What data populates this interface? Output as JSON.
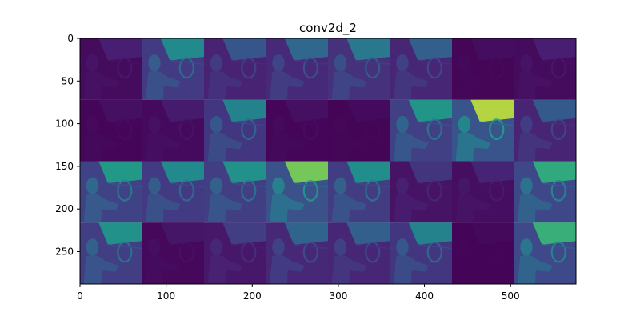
{
  "chart_data": {
    "type": "heatmap",
    "title": "conv2d_2",
    "xlabel": "",
    "ylabel": "",
    "xlim": [
      0,
      576
    ],
    "ylim": [
      288,
      0
    ],
    "x_ticks": [
      0,
      100,
      200,
      300,
      400,
      500
    ],
    "y_ticks": [
      0,
      50,
      100,
      150,
      200,
      250
    ],
    "grid": false,
    "colormap": "viridis",
    "tile_rows": 4,
    "tile_cols": 8,
    "tile_size": 72,
    "tile_intensity": [
      [
        0.12,
        0.62,
        0.36,
        0.44,
        0.52,
        0.4,
        0.05,
        0.12
      ],
      [
        0.06,
        0.1,
        0.58,
        0.06,
        0.04,
        0.68,
        0.95,
        0.38
      ],
      [
        0.7,
        0.62,
        0.66,
        0.9,
        0.64,
        0.2,
        0.14,
        0.78
      ],
      [
        0.66,
        0.08,
        0.24,
        0.42,
        0.4,
        0.58,
        0.03,
        0.8
      ]
    ],
    "colors": {
      "axis": "#000000",
      "background": "#ffffff"
    }
  }
}
